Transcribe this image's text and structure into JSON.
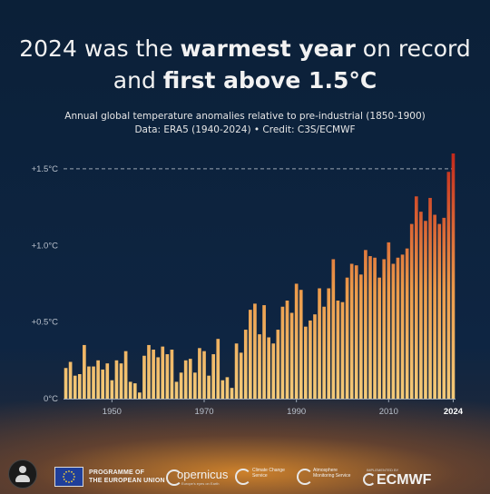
{
  "headline": {
    "line1_pre": "2024 was the ",
    "line1_bold": "warmest year",
    "line1_post": " on record",
    "line2_pre": "and ",
    "line2_bold": "first above 1.5°C"
  },
  "subtitle": "Annual global temperature anomalies relative to pre-industrial (1850-1900)",
  "credit": "Data: ERA5 (1940-2024) • Credit: C3S/ECMWF",
  "colors": {
    "background": "#0d2340",
    "bar_low": "#f2c46c",
    "bar_high": "#c7301c",
    "reference_line": "#9aa5b3"
  },
  "chart_data": {
    "type": "bar",
    "xlabel": "",
    "ylabel": "",
    "ylim": [
      0,
      1.6
    ],
    "grid": false,
    "x_tick_labels": [
      "1950",
      "1970",
      "1990",
      "2010",
      "2024"
    ],
    "y_tick_labels": [
      "0°C",
      "+0.5°C",
      "+1.0°C",
      "+1.5°C"
    ],
    "y_tick_values": [
      0,
      0.5,
      1.0,
      1.5
    ],
    "reference_line": {
      "value": 1.5,
      "style": "dashed"
    },
    "categories": [
      1940,
      1941,
      1942,
      1943,
      1944,
      1945,
      1946,
      1947,
      1948,
      1949,
      1950,
      1951,
      1952,
      1953,
      1954,
      1955,
      1956,
      1957,
      1958,
      1959,
      1960,
      1961,
      1962,
      1963,
      1964,
      1965,
      1966,
      1967,
      1968,
      1969,
      1970,
      1971,
      1972,
      1973,
      1974,
      1975,
      1976,
      1977,
      1978,
      1979,
      1980,
      1981,
      1982,
      1983,
      1984,
      1985,
      1986,
      1987,
      1988,
      1989,
      1990,
      1991,
      1992,
      1993,
      1994,
      1995,
      1996,
      1997,
      1998,
      1999,
      2000,
      2001,
      2002,
      2003,
      2004,
      2005,
      2006,
      2007,
      2008,
      2009,
      2010,
      2011,
      2012,
      2013,
      2014,
      2015,
      2016,
      2017,
      2018,
      2019,
      2020,
      2021,
      2022,
      2023,
      2024
    ],
    "values": [
      0.2,
      0.24,
      0.15,
      0.16,
      0.35,
      0.21,
      0.21,
      0.25,
      0.19,
      0.23,
      0.12,
      0.25,
      0.23,
      0.31,
      0.11,
      0.1,
      0.04,
      0.28,
      0.35,
      0.32,
      0.27,
      0.34,
      0.29,
      0.32,
      0.11,
      0.17,
      0.25,
      0.26,
      0.17,
      0.33,
      0.31,
      0.15,
      0.29,
      0.39,
      0.12,
      0.14,
      0.07,
      0.36,
      0.3,
      0.45,
      0.58,
      0.62,
      0.42,
      0.61,
      0.4,
      0.36,
      0.45,
      0.6,
      0.64,
      0.56,
      0.75,
      0.71,
      0.47,
      0.51,
      0.55,
      0.72,
      0.6,
      0.72,
      0.91,
      0.64,
      0.63,
      0.79,
      0.88,
      0.87,
      0.81,
      0.97,
      0.93,
      0.92,
      0.79,
      0.91,
      1.02,
      0.88,
      0.92,
      0.94,
      0.98,
      1.14,
      1.32,
      1.22,
      1.16,
      1.31,
      1.2,
      1.14,
      1.18,
      1.48,
      1.6
    ]
  },
  "footer": {
    "eu_text_1": "PROGRAMME OF",
    "eu_text_2": "THE EUROPEAN UNION",
    "copernicus": "opernicus",
    "copernicus_tagline": "Europe's eyes on Earth",
    "c3s": "Climate Change Service",
    "cams": "Atmosphere Monitoring Service",
    "ecmwf_implemented": "IMPLEMENTED BY",
    "ecmwf": "ECMWF"
  }
}
